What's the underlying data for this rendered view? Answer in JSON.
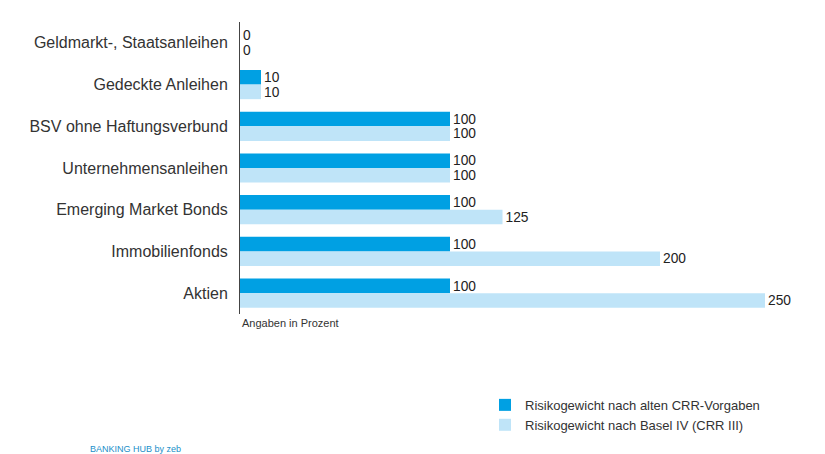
{
  "chart_data": {
    "type": "bar",
    "orientation": "horizontal",
    "categories": [
      "Geldmarkt-, Staatsanleihen",
      "Gedeckte Anleihen",
      "BSV ohne Haftungsverbund",
      "Unternehmensanleihen",
      "Emerging Market Bonds",
      "Immobilienfonds",
      "Aktien"
    ],
    "series": [
      {
        "name": "Risikogewicht nach alten CRR-Vorgaben",
        "color": "#00a0e3",
        "values": [
          0,
          10,
          100,
          100,
          100,
          100,
          100
        ]
      },
      {
        "name": "Risikogewicht nach Basel IV (CRR III)",
        "color": "#bfe4f8",
        "values": [
          0,
          10,
          100,
          100,
          125,
          200,
          250
        ]
      }
    ],
    "xlim": [
      0,
      250
    ],
    "tick_labels": "y",
    "data_labels": true,
    "grid": false,
    "legend": "bottom",
    "annotations": [
      "Angaben in Prozent",
      "BANKING HUB by zeb"
    ]
  }
}
